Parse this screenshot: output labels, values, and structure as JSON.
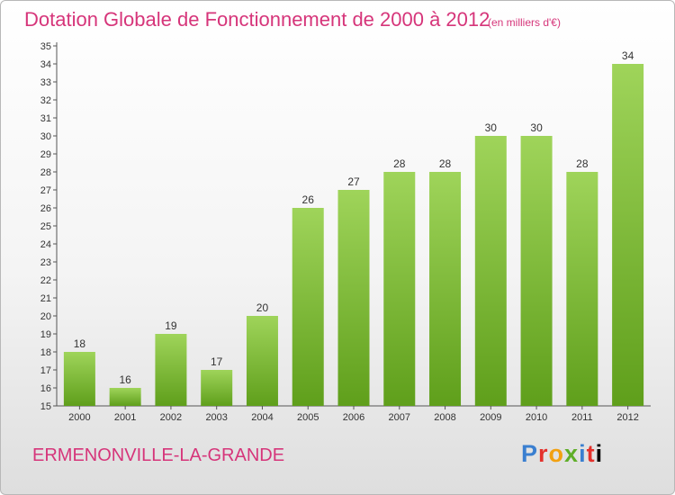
{
  "header": {
    "title": "Dotation Globale de Fonctionnement de 2000 à 2012",
    "unit": "(en milliers d'€)"
  },
  "footer": {
    "commune": "ERMENONVILLE-LA-GRANDE",
    "logo_letters": [
      "P",
      "r",
      "o",
      "x",
      "i",
      "t",
      "i"
    ]
  },
  "colors": {
    "title": "#d6357a",
    "bar_top": "#9fd45a",
    "bar_bottom": "#5f9f1b"
  },
  "chart_data": {
    "type": "bar",
    "title": "Dotation Globale de Fonctionnement de 2000 à 2012",
    "subtitle": "(en milliers d'€)",
    "categories": [
      "2000",
      "2001",
      "2002",
      "2003",
      "2004",
      "2005",
      "2006",
      "2007",
      "2008",
      "2009",
      "2010",
      "2011",
      "2012"
    ],
    "values": [
      18,
      16,
      19,
      17,
      20,
      26,
      27,
      28,
      28,
      30,
      30,
      28,
      34
    ],
    "ylim": [
      15,
      35
    ],
    "yticks": [
      15,
      16,
      17,
      18,
      19,
      20,
      21,
      22,
      23,
      24,
      25,
      26,
      27,
      28,
      29,
      30,
      31,
      32,
      33,
      34,
      35
    ],
    "grid": false,
    "legend": "none"
  }
}
